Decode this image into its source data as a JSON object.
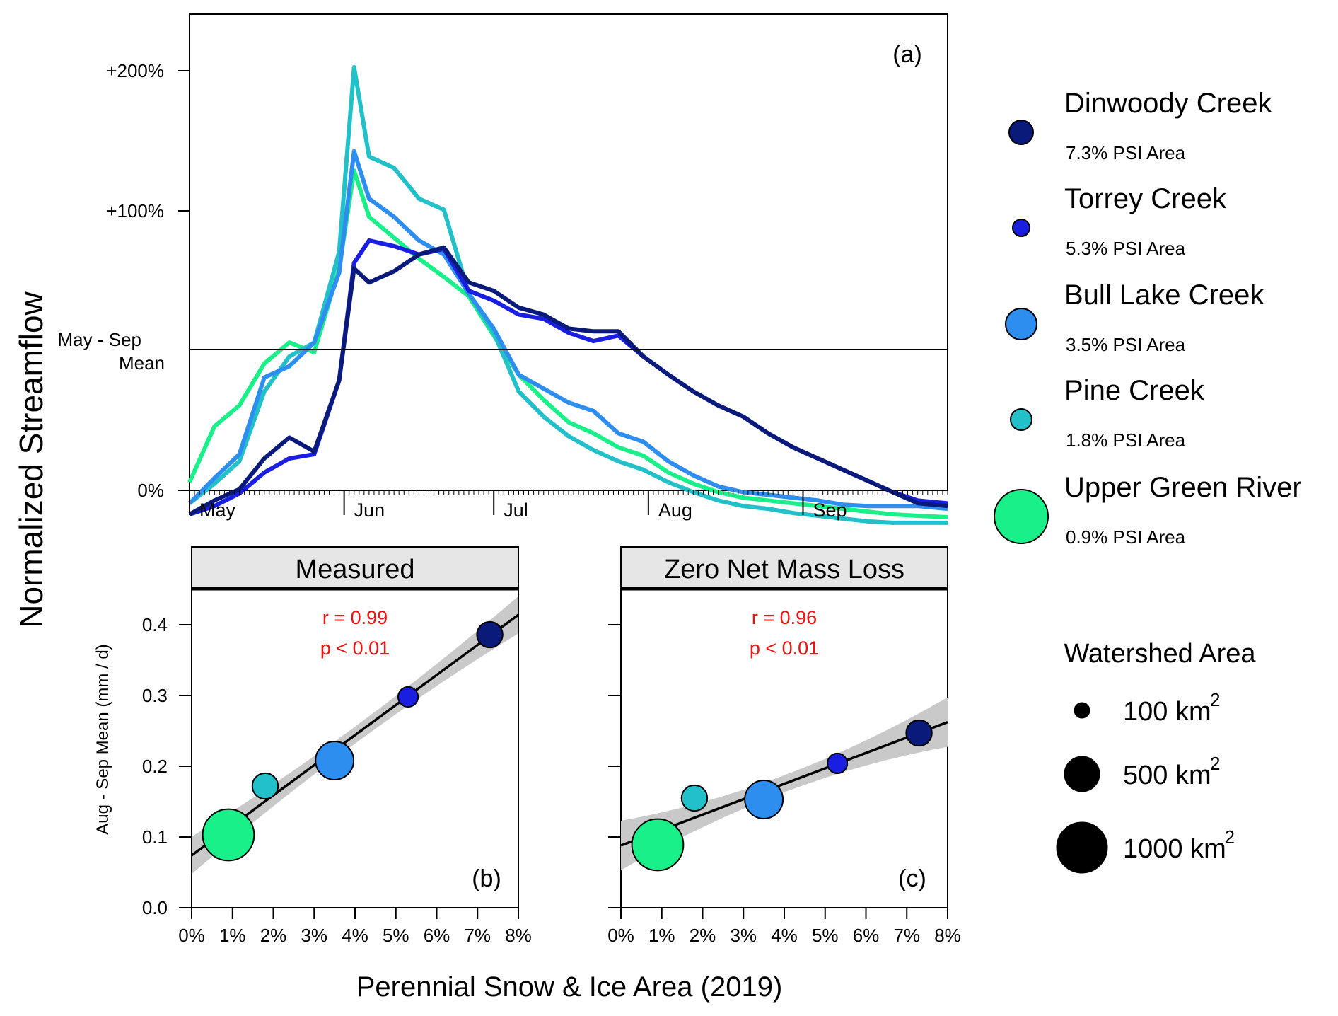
{
  "figure": {
    "ylabel_main": "Normalized Streamflow",
    "xlabel_bottom": "Perennial Snow & Ice Area (2019)"
  },
  "legend": {
    "sites": [
      {
        "name": "Dinwoody Creek",
        "psi": "7.3% PSI Area",
        "color": "#0a1a7a"
      },
      {
        "name": "Torrey Creek",
        "psi": "5.3% PSI Area",
        "color": "#1a1ee0"
      },
      {
        "name": "Bull Lake Creek",
        "psi": "3.5% PSI Area",
        "color": "#2e8ef0"
      },
      {
        "name": "Pine Creek",
        "psi": "1.8% PSI Area",
        "color": "#22c0c8"
      },
      {
        "name": "Upper Green River",
        "psi": "0.9% PSI Area",
        "color": "#1af08a"
      }
    ],
    "size_title": "Watershed Area",
    "sizes": [
      {
        "num": "100 km",
        "sup": "2"
      },
      {
        "num": "500 km",
        "sup": "2"
      },
      {
        "num": "1000 km",
        "sup": "2"
      }
    ]
  },
  "chart_data": [
    {
      "type": "line",
      "panel_label": "(a)",
      "title": "",
      "xlabel": "",
      "ylabel": "Normalized Streamflow",
      "ytick_labels": [
        "0%",
        "+100%",
        "+200%"
      ],
      "reference_line": {
        "label_line1": "May - Sep",
        "label_line2": "Mean"
      },
      "xtick_labels": [
        "May",
        "Jun",
        "Jul",
        "Aug",
        "Sep"
      ],
      "xlim": [
        "May 1",
        "Sep 30"
      ],
      "x_dates": [
        "May 1",
        "May 6",
        "May 11",
        "May 16",
        "May 21",
        "May 26",
        "May 31",
        "Jun 3",
        "Jun 6",
        "Jun 11",
        "Jun 16",
        "Jun 21",
        "Jun 26",
        "Jul 1",
        "Jul 6",
        "Jul 11",
        "Jul 16",
        "Jul 21",
        "Jul 26",
        "Jul 31",
        "Aug 5",
        "Aug 10",
        "Aug 15",
        "Aug 20",
        "Aug 25",
        "Aug 30",
        "Sep 4",
        "Sep 9",
        "Sep 14",
        "Sep 19",
        "Sep 24",
        "Sep 30"
      ],
      "series": [
        {
          "name": "Dinwoody Creek",
          "color": "#0a1a7a",
          "values": [
            -118,
            -108,
            -100,
            -78,
            -63,
            -73,
            -22,
            58,
            48,
            56,
            68,
            73,
            48,
            42,
            30,
            25,
            15,
            13,
            13,
            -5,
            -18,
            -30,
            -40,
            -48,
            -60,
            -70,
            -78,
            -86,
            -94,
            -102,
            -110,
            -112
          ]
        },
        {
          "name": "Torrey Creek",
          "color": "#1a1ee0",
          "values": [
            -118,
            -112,
            -103,
            -88,
            -78,
            -75,
            -22,
            62,
            78,
            74,
            68,
            72,
            42,
            35,
            25,
            22,
            12,
            6,
            10,
            -5,
            -18,
            -30,
            -40,
            -48,
            -60,
            -70,
            -78,
            -86,
            -94,
            -102,
            -108,
            -110
          ]
        },
        {
          "name": "Bull Lake Creek",
          "color": "#2e8ef0",
          "values": [
            -110,
            -92,
            -75,
            -20,
            -12,
            5,
            55,
            142,
            108,
            95,
            78,
            68,
            40,
            15,
            -18,
            -28,
            -38,
            -44,
            -60,
            -66,
            -80,
            -90,
            -98,
            -102,
            -104,
            -106,
            -108,
            -111,
            -112,
            -112,
            -112,
            -114
          ]
        },
        {
          "name": "Pine Creek",
          "color": "#22c0c8",
          "values": [
            -110,
            -96,
            -80,
            -30,
            -5,
            5,
            70,
            202,
            138,
            130,
            108,
            100,
            40,
            12,
            -30,
            -48,
            -62,
            -72,
            -80,
            -86,
            -95,
            -102,
            -108,
            -112,
            -114,
            -117,
            -119,
            -121,
            -123,
            -124,
            -124,
            -124
          ]
        },
        {
          "name": "Upper Green River",
          "color": "#1af08a",
          "values": [
            -95,
            -55,
            -40,
            -10,
            5,
            -2,
            58,
            128,
            95,
            80,
            65,
            52,
            38,
            10,
            -18,
            -36,
            -52,
            -60,
            -70,
            -76,
            -88,
            -96,
            -102,
            -106,
            -108,
            -110,
            -112,
            -114,
            -116,
            -118,
            -119,
            -120
          ]
        }
      ]
    },
    {
      "type": "scatter",
      "panel_label": "(b)",
      "title": "Measured",
      "xlabel": "Perennial Snow & Ice Area (2019)",
      "ylabel": "Aug - Sep Mean (mm / d)",
      "xlim": [
        0,
        8
      ],
      "ylim": [
        0,
        0.45
      ],
      "xtick_labels": [
        "0%",
        "1%",
        "2%",
        "3%",
        "4%",
        "5%",
        "6%",
        "7%",
        "8%"
      ],
      "ytick_labels": [
        "0.0",
        "0.1",
        "0.2",
        "0.3",
        "0.4"
      ],
      "annotation_r": "r = 0.99",
      "annotation_p": "p < 0.01",
      "fit": {
        "intercept": 0.074,
        "slope": 0.0425
      },
      "points": [
        {
          "name": "Upper Green River",
          "x": 0.9,
          "y": 0.103,
          "area_km2": 1000
        },
        {
          "name": "Pine Creek",
          "x": 1.8,
          "y": 0.172,
          "area_km2": 250
        },
        {
          "name": "Bull Lake Creek",
          "x": 3.5,
          "y": 0.208,
          "area_km2": 550
        },
        {
          "name": "Torrey Creek",
          "x": 5.3,
          "y": 0.298,
          "area_km2": 150
        },
        {
          "name": "Dinwoody Creek",
          "x": 7.3,
          "y": 0.386,
          "area_km2": 250
        }
      ]
    },
    {
      "type": "scatter",
      "panel_label": "(c)",
      "title": "Zero Net Mass Loss",
      "xlabel": "Perennial Snow & Ice Area (2019)",
      "ylabel": "",
      "xlim": [
        0,
        8
      ],
      "ylim": [
        0,
        0.45
      ],
      "xtick_labels": [
        "0%",
        "1%",
        "2%",
        "3%",
        "4%",
        "5%",
        "6%",
        "7%",
        "8%"
      ],
      "ytick_labels": [],
      "annotation_r": "r = 0.96",
      "annotation_p": "p < 0.01",
      "fit": {
        "intercept": 0.088,
        "slope": 0.0218
      },
      "points": [
        {
          "name": "Upper Green River",
          "x": 0.9,
          "y": 0.089,
          "area_km2": 1000
        },
        {
          "name": "Pine Creek",
          "x": 1.8,
          "y": 0.155,
          "area_km2": 250
        },
        {
          "name": "Bull Lake Creek",
          "x": 3.5,
          "y": 0.153,
          "area_km2": 550
        },
        {
          "name": "Torrey Creek",
          "x": 5.3,
          "y": 0.204,
          "area_km2": 150
        },
        {
          "name": "Dinwoody Creek",
          "x": 7.3,
          "y": 0.247,
          "area_km2": 250
        }
      ]
    }
  ]
}
